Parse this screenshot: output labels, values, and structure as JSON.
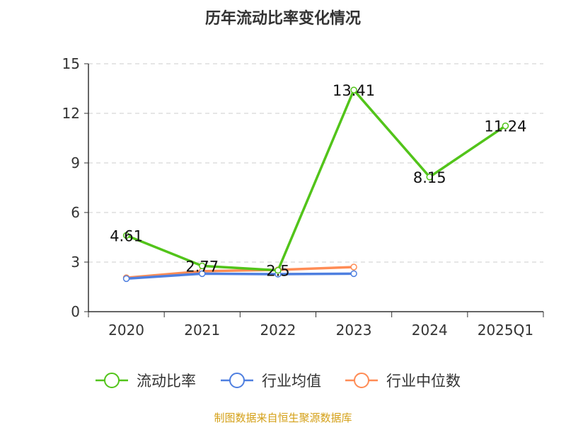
{
  "chart_data": {
    "type": "line",
    "title": "历年流动比率变化情况",
    "categories": [
      "2020",
      "2021",
      "2022",
      "2023",
      "2024",
      "2025Q1"
    ],
    "ylim": [
      0,
      15
    ],
    "yticks": [
      0,
      3,
      6,
      9,
      12,
      15
    ],
    "grid": true,
    "legend_position": "bottom",
    "series": [
      {
        "name": "流动比率",
        "color": "#52c41a",
        "values": [
          4.61,
          2.77,
          2.5,
          13.41,
          8.15,
          11.24
        ],
        "labels": [
          "4.61",
          "2.77",
          "2.5",
          "13.41",
          "8.15",
          "11.24"
        ]
      },
      {
        "name": "行业均值",
        "color": "#4e7fe0",
        "values": [
          2.0,
          2.3,
          2.27,
          2.3,
          null,
          null
        ]
      },
      {
        "name": "行业中位数",
        "color": "#ff8c55",
        "values": [
          2.05,
          2.45,
          2.53,
          2.7,
          null,
          null
        ]
      }
    ]
  },
  "source": "制图数据来自恒生聚源数据库",
  "source_color": "#d4a017"
}
